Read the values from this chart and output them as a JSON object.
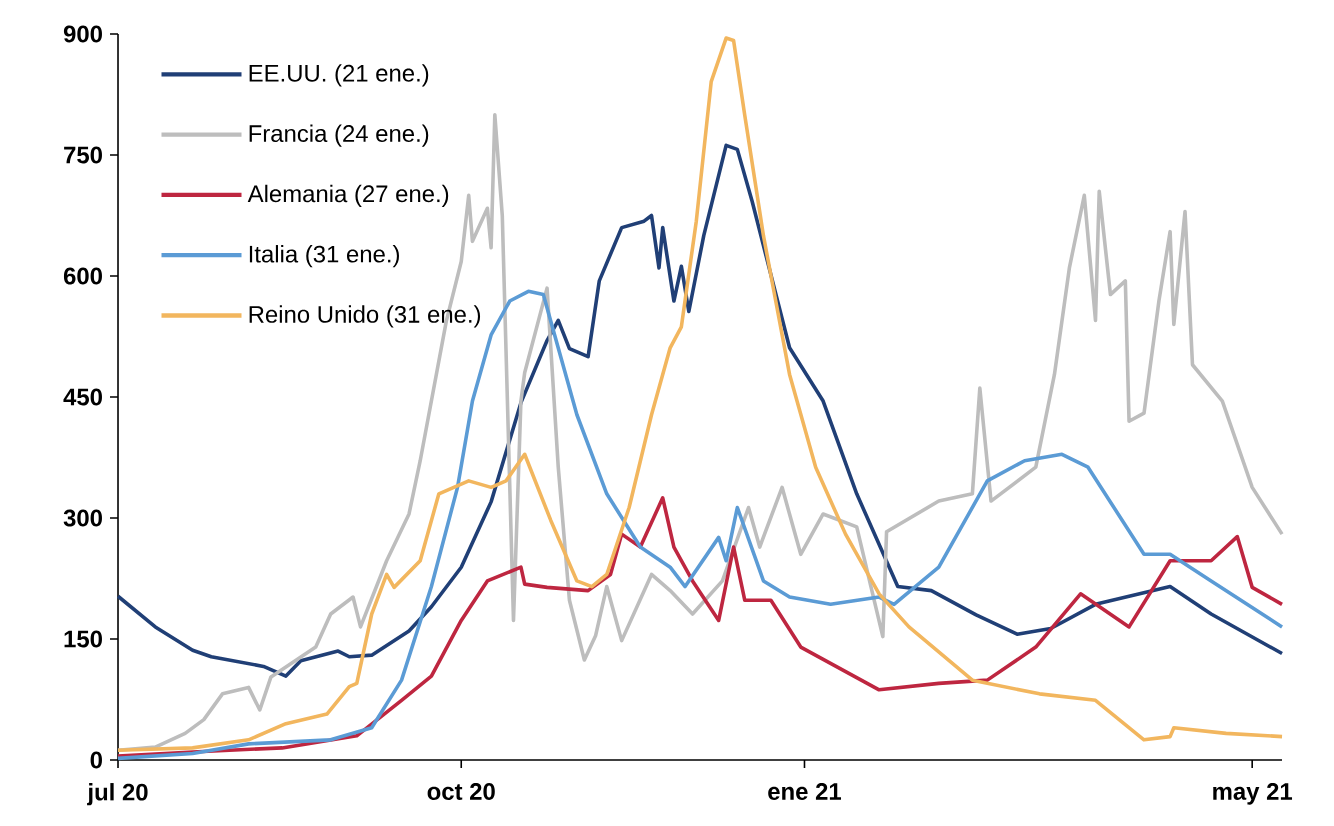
{
  "chart_data": {
    "type": "line",
    "legend": "top left",
    "grid": false,
    "marker": "none",
    "line_style": "solid",
    "xlim": [
      "2020-07-01",
      "2021-05-09"
    ],
    "ylim": [
      0,
      900
    ],
    "xticks": [
      {
        "value": "2020-07-01",
        "label": "jul 20"
      },
      {
        "value": "2020-10-01",
        "label": "oct 20"
      },
      {
        "value": "2021-01-01",
        "label": "ene 21"
      },
      {
        "value": "2021-05-01",
        "label": "may 21"
      }
    ],
    "yticks": [
      0,
      150,
      300,
      450,
      600,
      750,
      900
    ],
    "series": [
      {
        "name": "EE.UU. (21 ene.)",
        "color": "#203f76",
        "x": [
          "2020-07-01",
          "2020-07-11",
          "2020-07-21",
          "2020-07-26",
          "2020-08-09",
          "2020-08-15",
          "2020-08-19",
          "2020-08-29",
          "2020-09-01",
          "2020-09-07",
          "2020-09-17",
          "2020-09-23",
          "2020-10-01",
          "2020-10-09",
          "2020-10-17",
          "2020-10-24",
          "2020-10-27",
          "2020-10-30",
          "2020-11-04",
          "2020-11-07",
          "2020-11-13",
          "2020-11-19",
          "2020-11-21",
          "2020-11-23",
          "2020-11-24",
          "2020-11-27",
          "2020-11-29",
          "2020-12-01",
          "2020-12-05",
          "2020-12-11",
          "2020-12-14",
          "2020-12-18",
          "2020-12-28",
          "2021-01-06",
          "2021-01-15",
          "2021-01-26",
          "2021-02-04",
          "2021-02-16",
          "2021-02-27",
          "2021-03-08",
          "2021-03-20",
          "2021-04-09",
          "2021-04-20",
          "2021-05-09"
        ],
        "values": [
          203,
          165,
          136,
          128,
          116,
          104,
          123,
          135,
          128,
          130,
          160,
          190,
          239,
          320,
          443,
          520,
          545,
          510,
          500,
          594,
          660,
          668,
          675,
          610,
          660,
          569,
          612,
          556,
          650,
          762,
          757,
          692,
          511,
          445,
          330,
          215,
          210,
          180,
          156,
          163,
          193,
          215,
          181,
          132
        ]
      },
      {
        "name": "Francia (24 ene.)",
        "color": "#bdbdbd",
        "x": [
          "2020-07-01",
          "2020-07-11",
          "2020-07-19",
          "2020-07-24",
          "2020-07-29",
          "2020-08-05",
          "2020-08-08",
          "2020-08-11",
          "2020-08-23",
          "2020-08-27",
          "2020-09-02",
          "2020-09-04",
          "2020-09-11",
          "2020-09-17",
          "2020-09-20",
          "2020-09-27",
          "2020-10-01",
          "2020-10-03",
          "2020-10-04",
          "2020-10-08",
          "2020-10-09",
          "2020-10-10",
          "2020-10-12",
          "2020-10-15",
          "2020-10-17",
          "2020-10-18",
          "2020-10-24",
          "2020-10-27",
          "2020-10-30",
          "2020-11-03",
          "2020-11-06",
          "2020-11-09",
          "2020-11-13",
          "2020-11-21",
          "2020-11-26",
          "2020-12-02",
          "2020-12-10",
          "2020-12-17",
          "2020-12-20",
          "2020-12-26",
          "2020-12-31",
          "2021-01-06",
          "2021-01-15",
          "2021-01-22",
          "2021-01-23",
          "2021-02-06",
          "2021-02-15",
          "2021-02-17",
          "2021-02-20",
          "2021-03-04",
          "2021-03-09",
          "2021-03-13",
          "2021-03-17",
          "2021-03-20",
          "2021-03-21",
          "2021-03-24",
          "2021-03-28",
          "2021-03-29",
          "2021-04-02",
          "2021-04-06",
          "2021-04-09",
          "2021-04-10",
          "2021-04-13",
          "2021-04-15",
          "2021-04-23",
          "2021-05-01",
          "2021-05-09"
        ],
        "values": [
          12,
          16,
          33,
          50,
          82,
          90,
          62,
          103,
          140,
          181,
          202,
          165,
          247,
          305,
          371,
          544,
          618,
          700,
          643,
          684,
          635,
          800,
          675,
          173,
          445,
          480,
          585,
          363,
          198,
          124,
          154,
          215,
          148,
          230,
          210,
          181,
          222,
          313,
          264,
          338,
          255,
          305,
          289,
          153,
          283,
          321,
          330,
          461,
          321,
          363,
          478,
          610,
          700,
          545,
          705,
          577,
          594,
          420,
          430,
          569,
          655,
          540,
          680,
          490,
          445,
          338,
          280
        ]
      },
      {
        "name": "Alemania (27 ene.)",
        "color": "#be2640",
        "x": [
          "2020-07-01",
          "2020-07-21",
          "2020-08-14",
          "2020-09-03",
          "2020-09-15",
          "2020-09-23",
          "2020-10-01",
          "2020-10-08",
          "2020-10-17",
          "2020-10-18",
          "2020-10-24",
          "2020-11-04",
          "2020-11-10",
          "2020-11-13",
          "2020-11-18",
          "2020-11-24",
          "2020-11-27",
          "2020-12-02",
          "2020-12-09",
          "2020-12-13",
          "2020-12-16",
          "2020-12-23",
          "2020-12-31",
          "2021-01-21",
          "2021-02-06",
          "2021-02-19",
          "2021-03-04",
          "2021-03-16",
          "2021-03-29",
          "2021-04-09",
          "2021-04-20",
          "2021-04-27",
          "2021-05-01",
          "2021-05-09"
        ],
        "values": [
          5,
          10,
          15,
          30,
          74,
          104,
          173,
          222,
          239,
          218,
          214,
          210,
          230,
          280,
          264,
          325,
          264,
          222,
          173,
          264,
          198,
          198,
          140,
          87,
          95,
          99,
          140,
          206,
          165,
          247,
          247,
          277,
          214,
          193
        ]
      },
      {
        "name": "Italia (31 ene.)",
        "color": "#5b9bd5",
        "x": [
          "2020-07-01",
          "2020-07-21",
          "2020-08-05",
          "2020-08-27",
          "2020-09-07",
          "2020-09-15",
          "2020-09-23",
          "2020-09-30",
          "2020-10-04",
          "2020-10-09",
          "2020-10-14",
          "2020-10-19",
          "2020-10-23",
          "2020-11-01",
          "2020-11-09",
          "2020-11-18",
          "2020-11-26",
          "2020-11-30",
          "2020-12-09",
          "2020-12-11",
          "2020-12-14",
          "2020-12-21",
          "2020-12-28",
          "2021-01-08",
          "2021-01-21",
          "2021-01-25",
          "2021-02-06",
          "2021-02-19",
          "2021-03-01",
          "2021-03-11",
          "2021-03-18",
          "2021-04-02",
          "2021-04-09",
          "2021-04-20",
          "2021-05-09"
        ],
        "values": [
          2,
          8,
          20,
          25,
          40,
          99,
          215,
          338,
          445,
          527,
          569,
          581,
          577,
          428,
          330,
          264,
          239,
          215,
          276,
          247,
          313,
          222,
          202,
          193,
          202,
          193,
          239,
          346,
          371,
          379,
          363,
          255,
          255,
          222,
          165
        ]
      },
      {
        "name": "Reino Unido (31 ene.)",
        "color": "#f2b65e",
        "x": [
          "2020-07-01",
          "2020-07-21",
          "2020-08-05",
          "2020-08-15",
          "2020-08-26",
          "2020-09-01",
          "2020-09-03",
          "2020-09-07",
          "2020-09-11",
          "2020-09-13",
          "2020-09-20",
          "2020-09-25",
          "2020-10-03",
          "2020-10-09",
          "2020-10-13",
          "2020-10-18",
          "2020-10-25",
          "2020-11-01",
          "2020-11-05",
          "2020-11-09",
          "2020-11-15",
          "2020-11-21",
          "2020-11-26",
          "2020-11-29",
          "2020-12-03",
          "2020-12-07",
          "2020-12-11",
          "2020-12-13",
          "2020-12-16",
          "2020-12-21",
          "2020-12-28",
          "2021-01-04",
          "2021-01-12",
          "2021-01-21",
          "2021-01-29",
          "2021-02-15",
          "2021-03-05",
          "2021-03-20",
          "2021-04-02",
          "2021-04-09",
          "2021-04-10",
          "2021-04-24",
          "2021-05-09"
        ],
        "values": [
          12,
          15,
          25,
          45,
          57,
          91,
          95,
          181,
          230,
          214,
          247,
          330,
          346,
          338,
          346,
          379,
          297,
          222,
          215,
          230,
          313,
          428,
          511,
          537,
          668,
          841,
          895,
          892,
          799,
          650,
          478,
          363,
          280,
          206,
          165,
          99,
          82,
          74,
          25,
          29,
          40,
          33,
          29
        ]
      }
    ]
  }
}
